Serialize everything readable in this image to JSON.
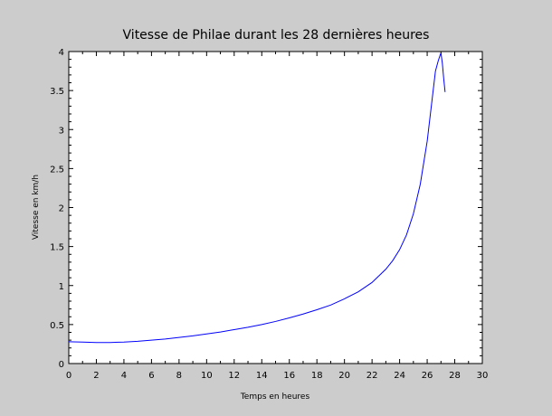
{
  "chart_data": {
    "type": "line",
    "title": "Vitesse de Philae durant les 28 dernières heures",
    "xlabel": "Temps en heures",
    "ylabel": "Vitesse en km/h",
    "xlim": [
      0,
      30
    ],
    "ylim": [
      0,
      4
    ],
    "xticks": [
      0,
      2,
      4,
      6,
      8,
      10,
      12,
      14,
      16,
      18,
      20,
      22,
      24,
      26,
      28,
      30
    ],
    "yticks": [
      0,
      0.5,
      1,
      1.5,
      2,
      2.5,
      3,
      3.5,
      4
    ],
    "xtick_labels": [
      "0",
      "2",
      "4",
      "6",
      "8",
      "10",
      "12",
      "14",
      "16",
      "18",
      "20",
      "22",
      "24",
      "26",
      "28",
      "30"
    ],
    "ytick_labels": [
      "0",
      "0.5",
      "1",
      "1.5",
      "2",
      "2.5",
      "3",
      "3.5",
      "4"
    ],
    "grid": false,
    "colors": {
      "line": "#0000ff",
      "background": "#cccccc",
      "plot_area": "#ffffff"
    },
    "series": [
      {
        "x": [
          0,
          1,
          2,
          3,
          4,
          5,
          6,
          7,
          8,
          9,
          10,
          11,
          12,
          13,
          14,
          15,
          16,
          17,
          18,
          19,
          20,
          21,
          22,
          23,
          23.5,
          24,
          24.5,
          25,
          25.5,
          26,
          26.3,
          26.6,
          26.8,
          26.95,
          27.0,
          27.1,
          27.2,
          27.3
        ],
        "y": [
          0.28,
          0.275,
          0.27,
          0.27,
          0.275,
          0.285,
          0.3,
          0.315,
          0.335,
          0.355,
          0.38,
          0.405,
          0.435,
          0.465,
          0.5,
          0.54,
          0.585,
          0.635,
          0.69,
          0.75,
          0.83,
          0.92,
          1.04,
          1.21,
          1.32,
          1.46,
          1.65,
          1.92,
          2.3,
          2.85,
          3.3,
          3.75,
          3.88,
          3.96,
          3.98,
          3.85,
          3.65,
          3.48
        ]
      }
    ]
  }
}
